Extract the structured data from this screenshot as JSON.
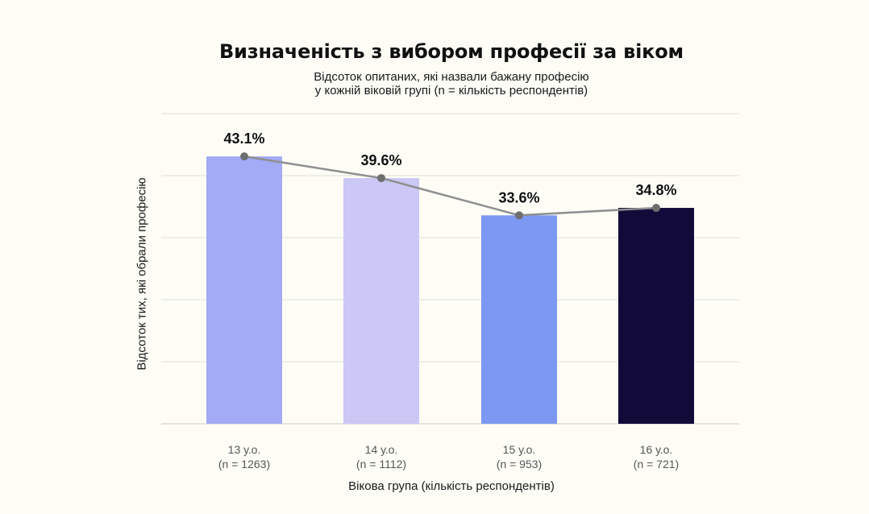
{
  "chart_data": {
    "type": "bar",
    "title": "Визначеність з вибором професії за віком",
    "subtitle_lines": [
      "Відсоток опитаних, які назвали бажану професію",
      "у кожній віковій групі (n = кількість респондентів)"
    ],
    "xlabel": "Вікова група (кількість респондентів)",
    "ylabel": "Відсоток тих, які обрали професію",
    "categories": [
      [
        "13 у.о.",
        "(n = 1263)"
      ],
      [
        "14 у.о.",
        "(n = 1112)"
      ],
      [
        "15 у.о.",
        "(n = 953)"
      ],
      [
        "16 у.о.",
        "(n = 721)"
      ]
    ],
    "values": [
      43.1,
      39.6,
      33.6,
      34.8
    ],
    "value_labels": [
      "43.1%",
      "39.6%",
      "33.6%",
      "34.8%"
    ],
    "bar_colors": [
      "#a3aaf6",
      "#cbc8f6",
      "#7d98f2",
      "#120b3a"
    ],
    "line_color": "#8f8f8f",
    "ylim": [
      0,
      50
    ],
    "grid": true,
    "y_ticks_shown": false,
    "overlay": "line connecting bar tops"
  }
}
